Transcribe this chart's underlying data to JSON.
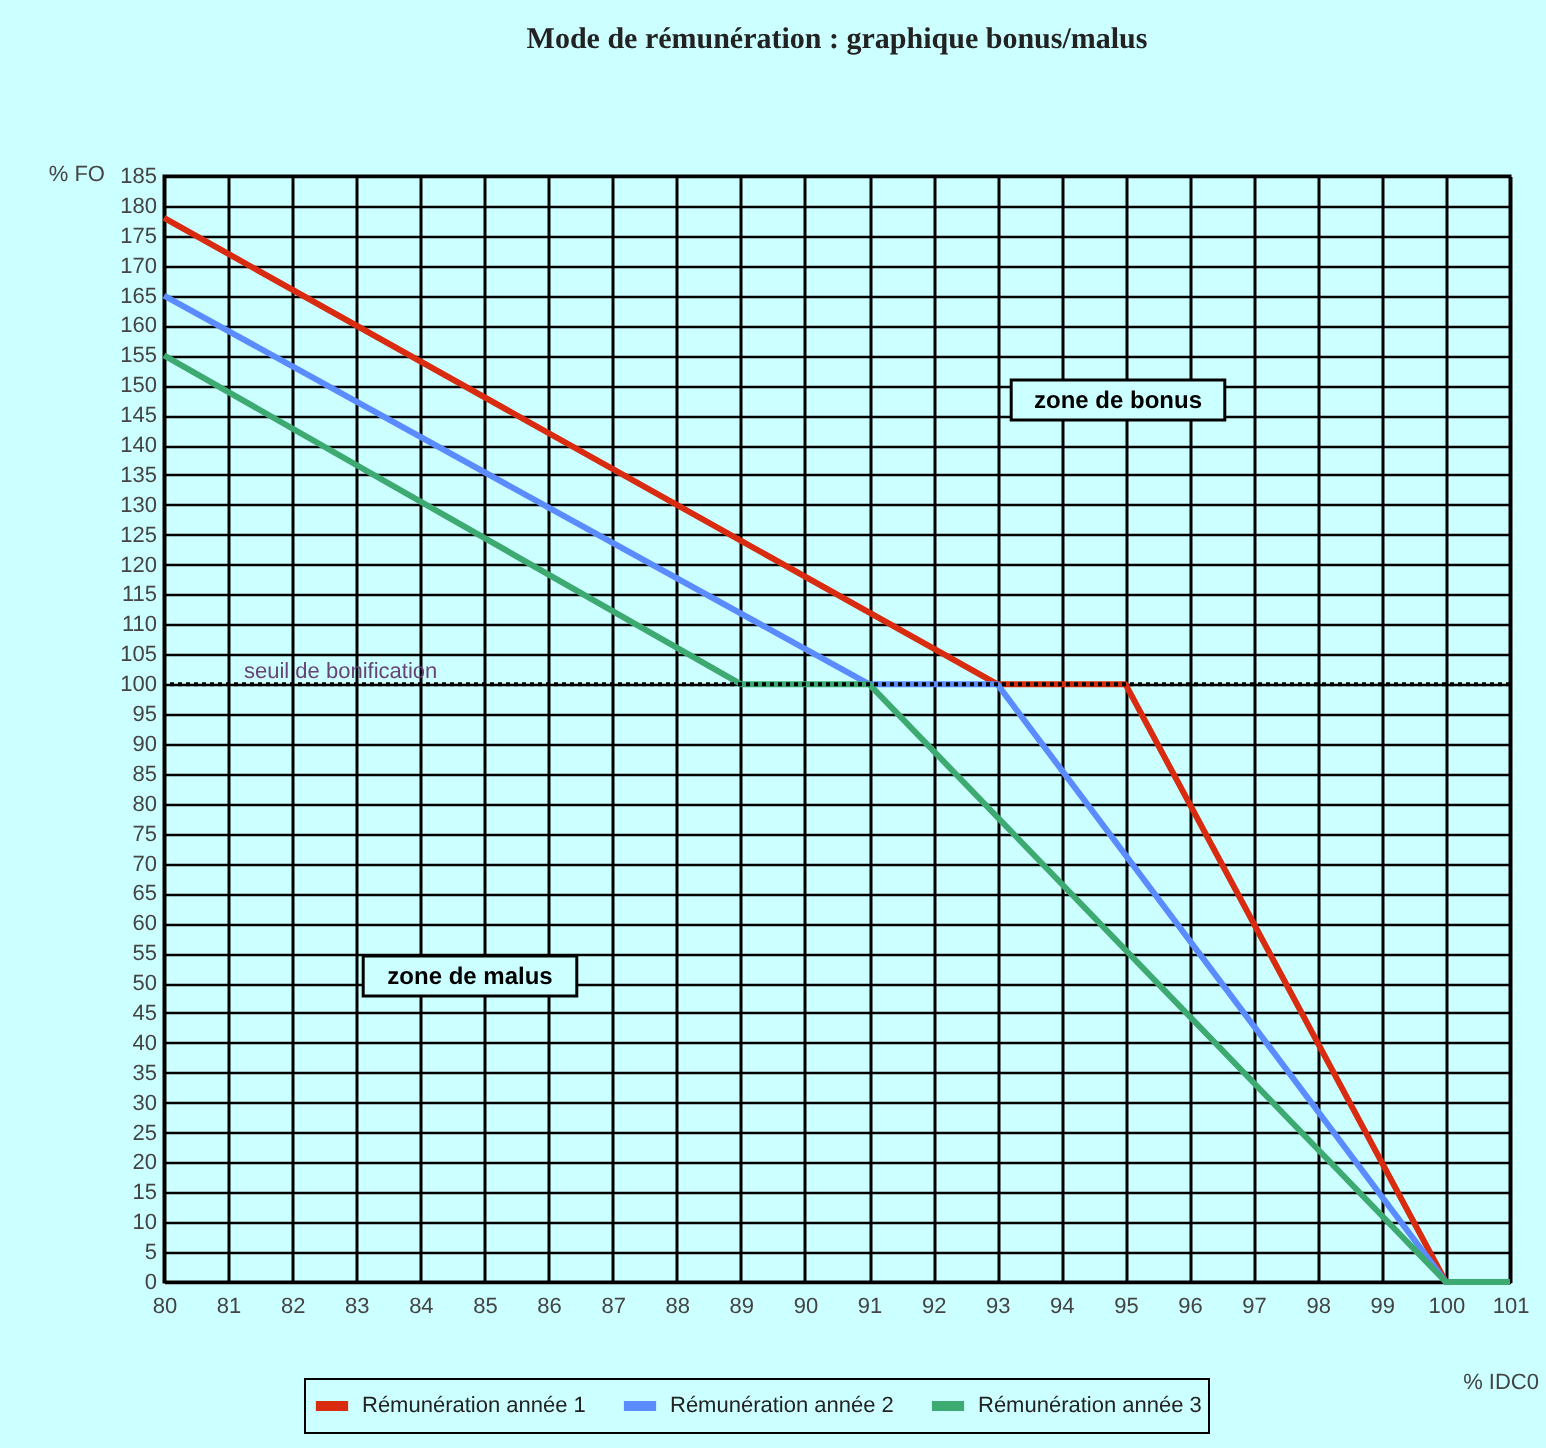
{
  "chart_data": {
    "type": "line",
    "title": "Mode de rémunération : graphique bonus/malus",
    "xlabel": "% IDC0",
    "ylabel": "% FO",
    "series": [
      {
        "name": "Rémunération année 1",
        "color": "#d92b0f",
        "x": [
          80,
          93,
          95,
          100,
          101
        ],
        "values": [
          178,
          100,
          100,
          0,
          0
        ]
      },
      {
        "name": "Rémunération année 2",
        "color": "#5a8cff",
        "x": [
          80,
          91,
          93,
          100,
          101
        ],
        "values": [
          165,
          100,
          100,
          0,
          0
        ]
      },
      {
        "name": "Rémunération année 3",
        "color": "#3daa72",
        "x": [
          80,
          89,
          91,
          100,
          101
        ],
        "values": [
          155,
          100,
          100,
          0,
          0
        ]
      }
    ],
    "xlim": [
      80,
      101
    ],
    "xticks": [
      80,
      81,
      82,
      83,
      84,
      85,
      86,
      87,
      88,
      89,
      90,
      91,
      92,
      93,
      94,
      95,
      96,
      97,
      98,
      99,
      100,
      101
    ],
    "ylim": [
      0,
      185
    ],
    "yticks": [
      0,
      5,
      10,
      15,
      20,
      25,
      30,
      35,
      40,
      45,
      50,
      55,
      60,
      65,
      70,
      75,
      80,
      85,
      90,
      95,
      100,
      105,
      110,
      115,
      120,
      125,
      130,
      135,
      140,
      145,
      150,
      155,
      160,
      165,
      170,
      175,
      180,
      185
    ],
    "ref_lines": [
      {
        "axis": "y",
        "value": 100,
        "label": "seuil de bonification",
        "color": "#000000",
        "line_style": "dotted"
      }
    ],
    "annotations": [
      "zone de bonus",
      "zone de malus"
    ],
    "grid": true,
    "legend": "bottom"
  }
}
